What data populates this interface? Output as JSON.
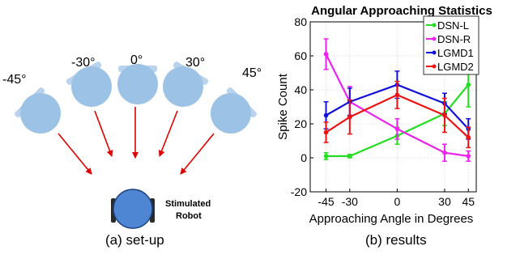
{
  "setup": {
    "caption": "(a) set-up",
    "angles": [
      "-45°",
      "-30°",
      "0°",
      "30°",
      "45°"
    ],
    "robot_label_line1": "Stimulated",
    "robot_label_line2": "Robot",
    "colors": {
      "looming_robot": "#9cc3e6",
      "stimulated_robot": "#4f86d3",
      "arrow": "#e00000"
    }
  },
  "results": {
    "caption": "(b) results"
  },
  "chart_data": {
    "type": "line",
    "title": "Angular Approaching Statistics",
    "xlabel": "Approaching Angle in Degrees",
    "ylabel": "Spike Count",
    "x": [
      -45,
      -30,
      0,
      30,
      45
    ],
    "xticks": [
      -45,
      -30,
      0,
      30,
      45
    ],
    "xtick_labels": [
      "-45",
      "-30",
      "0",
      "30",
      "45"
    ],
    "xlim": [
      -55,
      50
    ],
    "ylim": [
      -20,
      80
    ],
    "yticks": [
      -20,
      0,
      20,
      40,
      60,
      80
    ],
    "ytick_labels": [
      "-20",
      "0",
      "20",
      "40",
      "60",
      "80"
    ],
    "grid": true,
    "legend_position": "top-right",
    "series": [
      {
        "name": "DSN-L",
        "color": "#22dd22",
        "values": [
          1,
          1,
          13,
          26,
          43
        ],
        "errors": [
          2,
          1,
          5,
          7,
          13
        ]
      },
      {
        "name": "DSN-R",
        "color": "#ee22ee",
        "values": [
          61,
          33,
          17,
          3,
          1
        ],
        "errors": [
          9,
          9,
          6,
          5,
          3
        ]
      },
      {
        "name": "LGMD1",
        "color": "#1111dd",
        "values": [
          25,
          33,
          43,
          32,
          17
        ],
        "errors": [
          8,
          8,
          8,
          6,
          6
        ]
      },
      {
        "name": "LGMD2",
        "color": "#ee1111",
        "values": [
          15,
          24,
          37,
          25,
          12
        ],
        "errors": [
          6,
          10,
          8,
          10,
          6
        ]
      }
    ]
  }
}
